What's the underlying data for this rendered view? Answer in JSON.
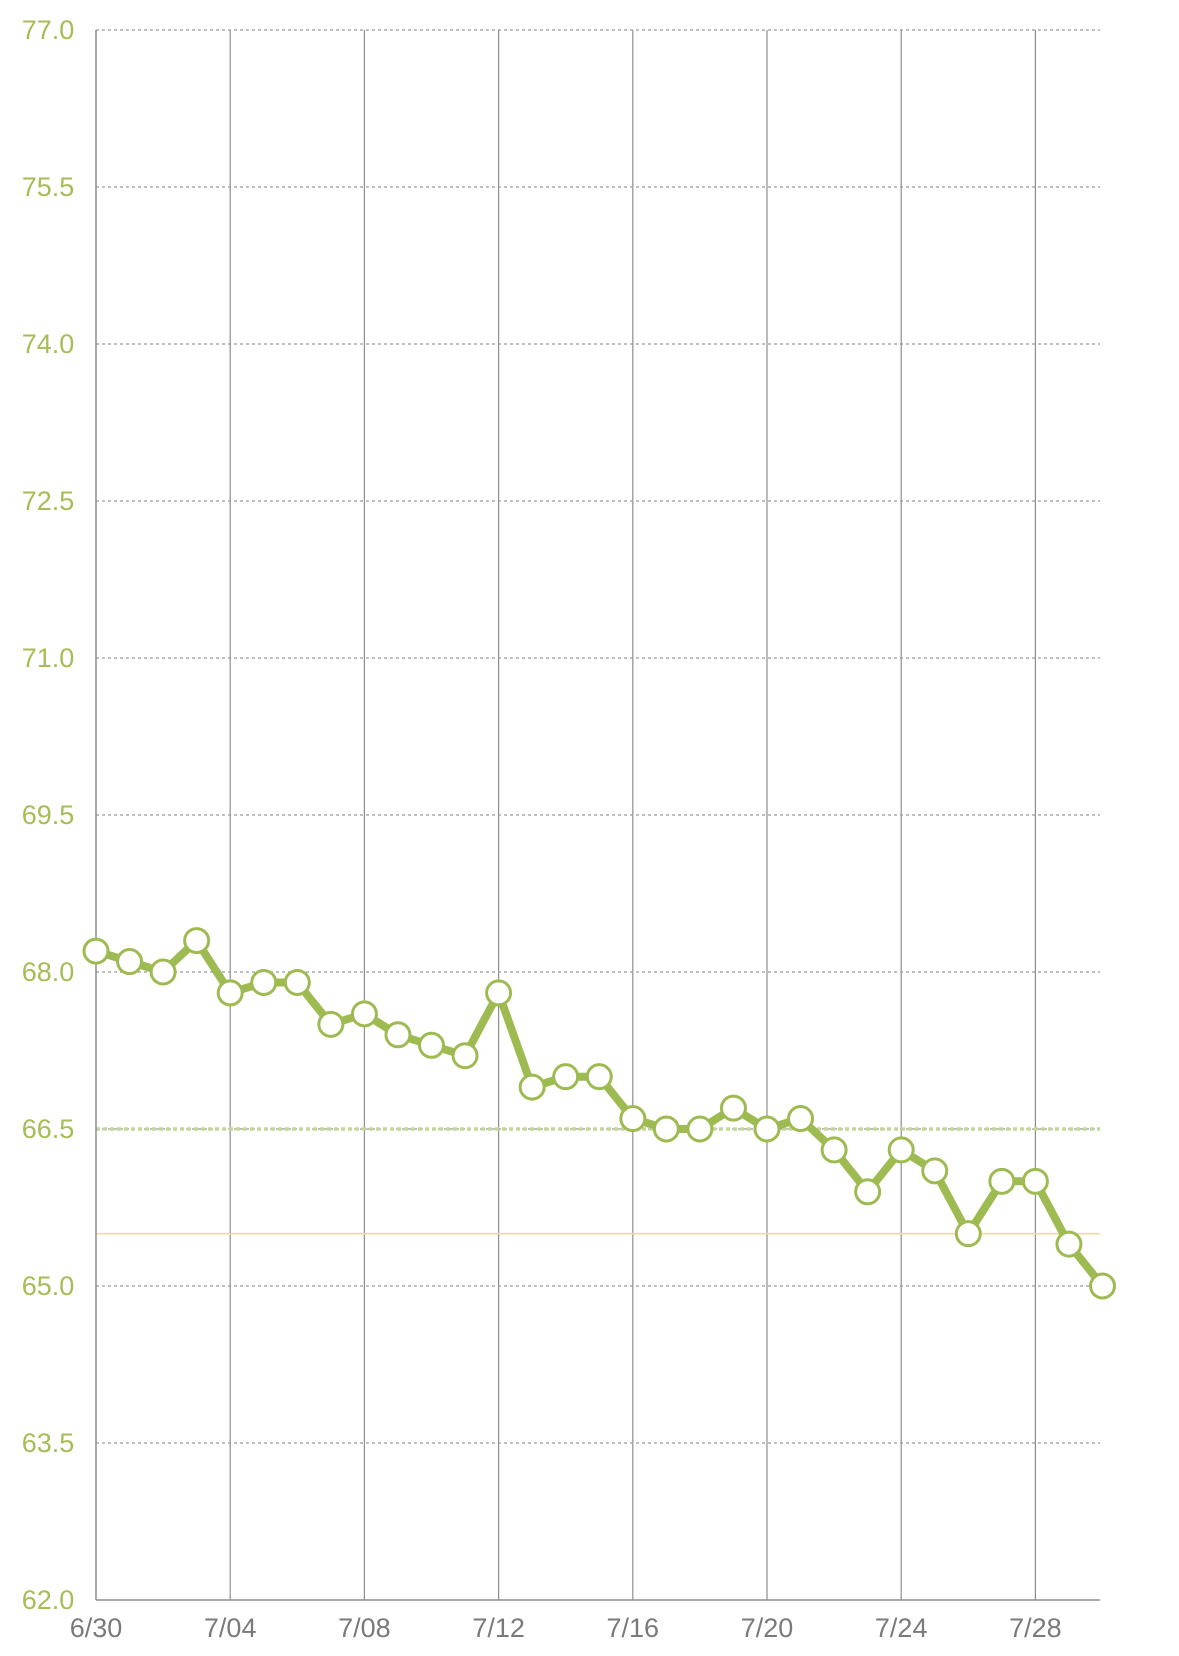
{
  "colors": {
    "series": "#9dbb50",
    "marker_fill": "#ffffff",
    "y_label": "#a5bd55",
    "x_label": "#7a7a7a",
    "vertical_grid": "#8e8e8e",
    "horizontal_grid": "#9a9a9a",
    "axis": "#8e8e8e",
    "reference_dotted": "#c5d69a",
    "reference_solid": "#f0d9a8"
  },
  "chart_data": {
    "type": "line",
    "title": "",
    "xlabel": "",
    "ylabel": "",
    "ylim": [
      62.0,
      77.0
    ],
    "y_ticks": [
      "77.0",
      "75.5",
      "74.0",
      "72.5",
      "71.0",
      "69.5",
      "68.0",
      "66.5",
      "65.0",
      "63.5",
      "62.0"
    ],
    "x_ticks": [
      "6/30",
      "7/04",
      "7/08",
      "7/12",
      "7/16",
      "7/20",
      "7/24",
      "7/28"
    ],
    "x_tick_day_index": [
      0,
      4,
      8,
      12,
      16,
      20,
      24,
      28
    ],
    "day_count": 31,
    "grid": {
      "horizontal": "dotted",
      "vertical": "solid"
    },
    "reference_lines": [
      {
        "value": 66.5,
        "style": "dotted"
      },
      {
        "value": 65.5,
        "style": "solid"
      }
    ],
    "x": [
      "6/30",
      "7/01",
      "7/02",
      "7/03",
      "7/04",
      "7/05",
      "7/06",
      "7/07",
      "7/08",
      "7/09",
      "7/10",
      "7/11",
      "7/12",
      "7/13",
      "7/14",
      "7/15",
      "7/16",
      "7/17",
      "7/18",
      "7/19",
      "7/20",
      "7/21",
      "7/22",
      "7/23",
      "7/24",
      "7/25",
      "7/26",
      "7/27",
      "7/28",
      "7/29",
      "7/30"
    ],
    "values": [
      68.2,
      68.1,
      68.0,
      68.3,
      67.8,
      67.9,
      67.9,
      67.5,
      67.6,
      67.4,
      67.3,
      67.2,
      67.8,
      66.9,
      67.0,
      67.0,
      66.6,
      66.5,
      66.5,
      66.7,
      66.5,
      66.6,
      66.3,
      65.9,
      66.3,
      66.1,
      65.5,
      66.0,
      66.0,
      65.4,
      65.0
    ]
  }
}
